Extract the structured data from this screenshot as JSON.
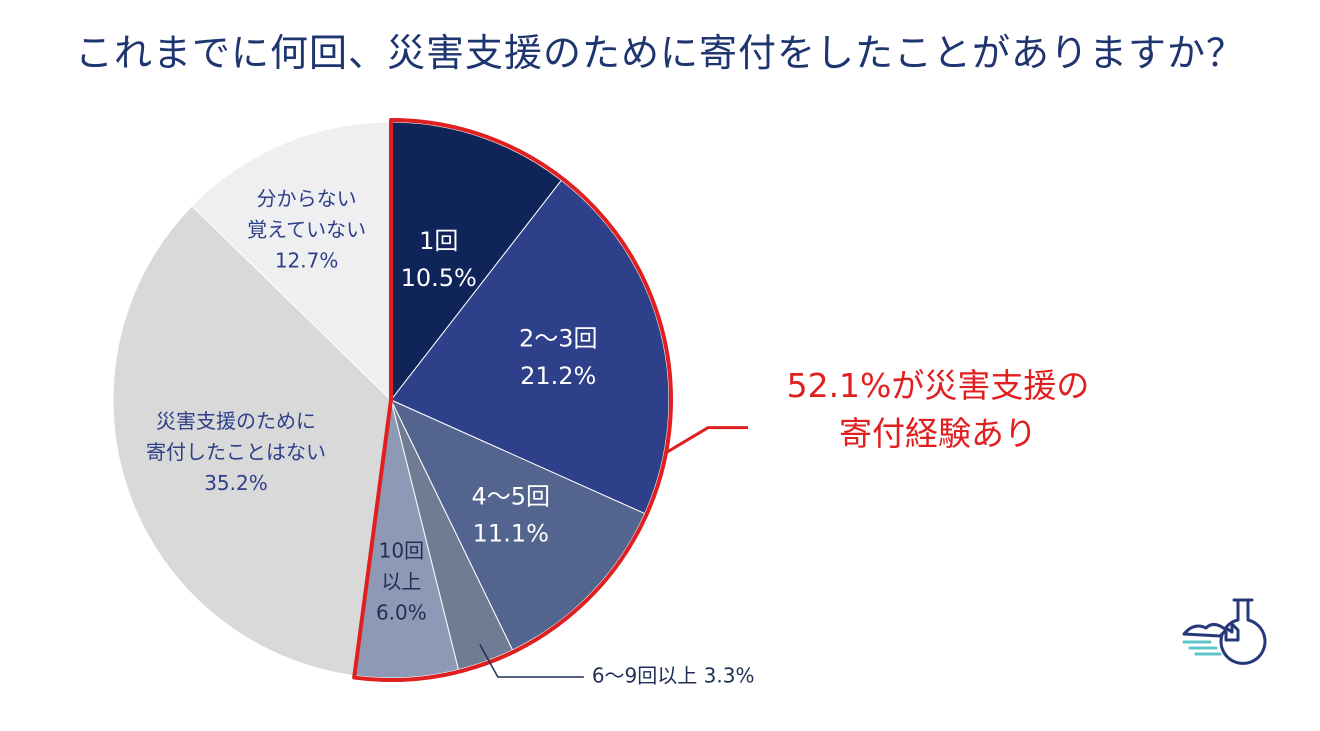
{
  "title": "これまでに何回、災害支援のために寄付をしたことがありますか？",
  "callout": {
    "line1": "52.1%が災害支援の",
    "line2": "寄付経験あり",
    "color": "#e02020"
  },
  "chart_data": {
    "type": "pie",
    "title": "これまでに何回、災害支援のために寄付をしたことがありますか？",
    "unit": "%",
    "start_angle": "12 o'clock",
    "direction": "clockwise",
    "highlight": {
      "slices": [
        "1回",
        "2〜3回",
        "4〜5回",
        "6〜9回以上",
        "10回以上"
      ],
      "total": 52.1,
      "color": "#e02020"
    },
    "slices": [
      {
        "label": "1回",
        "lines": [
          "1回",
          "10.5%"
        ],
        "value": 10.5,
        "color": "#0f2459",
        "text_color": "#ffffff"
      },
      {
        "label": "2〜3回",
        "lines": [
          "2〜3回",
          "21.2%"
        ],
        "value": 21.2,
        "color": "#2e4089",
        "text_color": "#ffffff"
      },
      {
        "label": "4〜5回",
        "lines": [
          "4〜5回",
          "11.1%"
        ],
        "value": 11.1,
        "color": "#53648f",
        "text_color": "#ffffff"
      },
      {
        "label": "6〜9回以上",
        "lines": [
          "6〜9回以上 3.3%"
        ],
        "value": 3.3,
        "color": "#707c94",
        "text_color": "#1f2f55",
        "external": true
      },
      {
        "label": "10回以上",
        "lines": [
          "10回",
          "以上",
          "6.0%"
        ],
        "value": 6.0,
        "color": "#8e99b6",
        "text_color": "#1f2f55"
      },
      {
        "label": "災害支援のために寄付したことはない",
        "lines": [
          "災害支援のために",
          "寄付したことはない",
          "35.2%"
        ],
        "value": 35.2,
        "color": "#d9d9d9",
        "text_color": "#2e4089"
      },
      {
        "label": "分からない 覚えていない",
        "lines": [
          "分からない",
          "覚えていない",
          "12.7%"
        ],
        "value": 12.7,
        "color": "#efeff1",
        "text_color": "#2e4089"
      }
    ]
  },
  "logo": {
    "icon": "flask-island-icon",
    "color": "#24387a",
    "accent": "#5cc5c8"
  }
}
